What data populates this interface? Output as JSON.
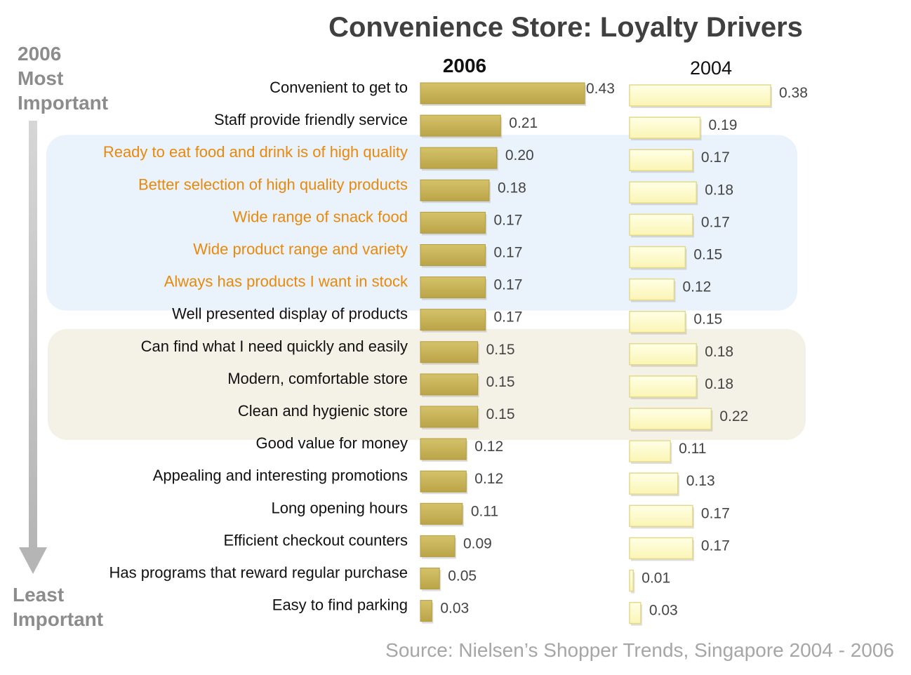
{
  "chart_data": {
    "type": "bar",
    "title": "Convenience Store: Loyalty Drivers",
    "side_labels": {
      "top": [
        "2006",
        "Most",
        "Important"
      ],
      "bottom": [
        "Least",
        "Important"
      ]
    },
    "categories": [
      "Convenient to get to",
      "Staff provide friendly service",
      "Ready to eat food and drink is of high quality",
      "Better selection of high quality products",
      "Wide range of snack food",
      "Wide product range and variety",
      "Always has products I want in stock",
      "Well presented display of products",
      "Can find what I need quickly and easily",
      "Modern, comfortable store",
      "Clean and hygienic store",
      "Good value for money",
      "Appealing and interesting promotions",
      "Long opening hours",
      "Efficient checkout counters",
      "Has programs that reward regular purchase",
      "Easy to find parking"
    ],
    "highlighted_categories": [
      2,
      3,
      4,
      5,
      6
    ],
    "highlight_groups": [
      {
        "rows": [
          2,
          6
        ],
        "color": "#eaf3fb"
      },
      {
        "rows": [
          8,
          10
        ],
        "color": "#f4f1e7"
      }
    ],
    "series": [
      {
        "name": "2006",
        "values": [
          0.43,
          0.21,
          0.2,
          0.18,
          0.17,
          0.17,
          0.17,
          0.17,
          0.15,
          0.15,
          0.15,
          0.12,
          0.12,
          0.11,
          0.09,
          0.05,
          0.03
        ],
        "labels": [
          "0.43",
          "0.21",
          "0.20",
          "0.18",
          "0.17",
          "0.17",
          "0.17",
          "0.17",
          "0.15",
          "0.15",
          "0.15",
          "0.12",
          "0.12",
          "0.11",
          "0.09",
          "0.05",
          "0.03"
        ],
        "color": "#c9b457"
      },
      {
        "name": "2004",
        "values": [
          0.38,
          0.19,
          0.17,
          0.18,
          0.17,
          0.15,
          0.12,
          0.15,
          0.18,
          0.18,
          0.22,
          0.11,
          0.13,
          0.17,
          0.17,
          0.01,
          0.03
        ],
        "labels": [
          "0.38",
          "0.19",
          "0.17",
          "0.18",
          "0.17",
          "0.15",
          "0.12",
          "0.15",
          "0.18",
          "0.18",
          "0.22",
          "0.11",
          "0.13",
          "0.17",
          "0.17",
          "0.01",
          "0.03"
        ],
        "color": "#ffffcc"
      }
    ],
    "text_color": "#111111",
    "highlight_text_color": "#e8890c",
    "source": "Source: Nielsen’s Shopper Trends, Singapore 2004 - 2006",
    "grid": false,
    "legend": "none"
  }
}
